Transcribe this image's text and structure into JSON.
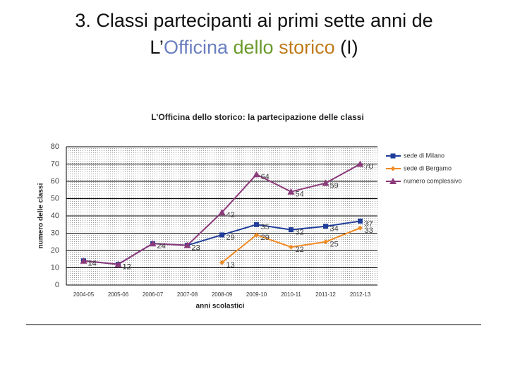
{
  "slide_title": {
    "line1": "3. Classi partecipanti ai primi sette anni de",
    "prefix": "L’",
    "w1": "Officina",
    "w2": "dello",
    "w3": "storico",
    "suffix": "(I)"
  },
  "chart_data": {
    "type": "line",
    "title": "L'Officina dello storico: la partecipazione delle classi",
    "x_label": "anni scolastici",
    "y_label": "numero delle classi",
    "categories": [
      "2004-05",
      "2005-06",
      "2006-07",
      "2007-08",
      "2008-09",
      "2009-10",
      "2010-11",
      "2011-12",
      "2012-13"
    ],
    "series": [
      {
        "name": "sede di Milano",
        "color": "#1f3d99",
        "marker": "square",
        "values": [
          14,
          12,
          24,
          23,
          29,
          35,
          32,
          34,
          37
        ]
      },
      {
        "name": "sede di Bergamo",
        "color": "#f08a24",
        "marker": "diamond",
        "values": [
          null,
          null,
          null,
          null,
          13,
          29,
          22,
          25,
          33
        ]
      },
      {
        "name": "numero complessivo",
        "color": "#8b3a7a",
        "marker": "triangle",
        "values": [
          14,
          12,
          24,
          23,
          42,
          64,
          54,
          59,
          70
        ]
      }
    ],
    "ylim": [
      0,
      80
    ],
    "yticks": [
      0,
      10,
      20,
      30,
      40,
      50,
      60,
      70,
      80
    ],
    "grid": true,
    "legend": "right"
  }
}
